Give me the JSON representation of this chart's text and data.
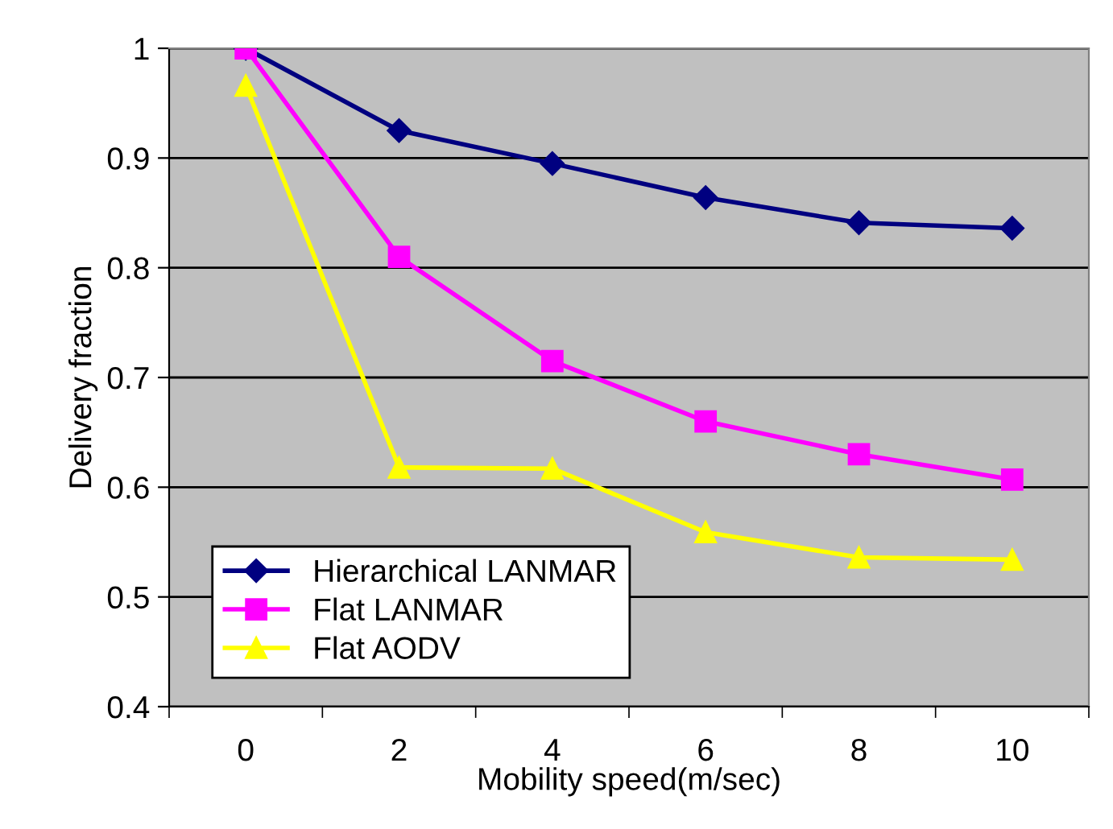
{
  "chart_data": {
    "type": "line",
    "xlabel": "Mobility speed(m/sec)",
    "ylabel": "Delivery fraction",
    "categories": [
      "0",
      "2",
      "4",
      "6",
      "8",
      "10"
    ],
    "series": [
      {
        "name": "Hierarchical LANMAR",
        "color": "#000080",
        "marker": "diamond",
        "values": [
          1.0,
          0.925,
          0.895,
          0.864,
          0.841,
          0.836
        ]
      },
      {
        "name": "Flat LANMAR",
        "color": "#ff00ff",
        "marker": "square",
        "values": [
          1.0,
          0.81,
          0.715,
          0.66,
          0.63,
          0.607
        ]
      },
      {
        "name": "Flat AODV",
        "color": "#ffff00",
        "marker": "triangle",
        "values": [
          0.966,
          0.618,
          0.617,
          0.559,
          0.536,
          0.534
        ]
      }
    ],
    "ylim": [
      0.4,
      1
    ],
    "yticks": [
      0.4,
      0.5,
      0.6,
      0.7,
      0.8,
      0.9,
      1
    ],
    "grid": "y",
    "legend": "bottom left"
  }
}
